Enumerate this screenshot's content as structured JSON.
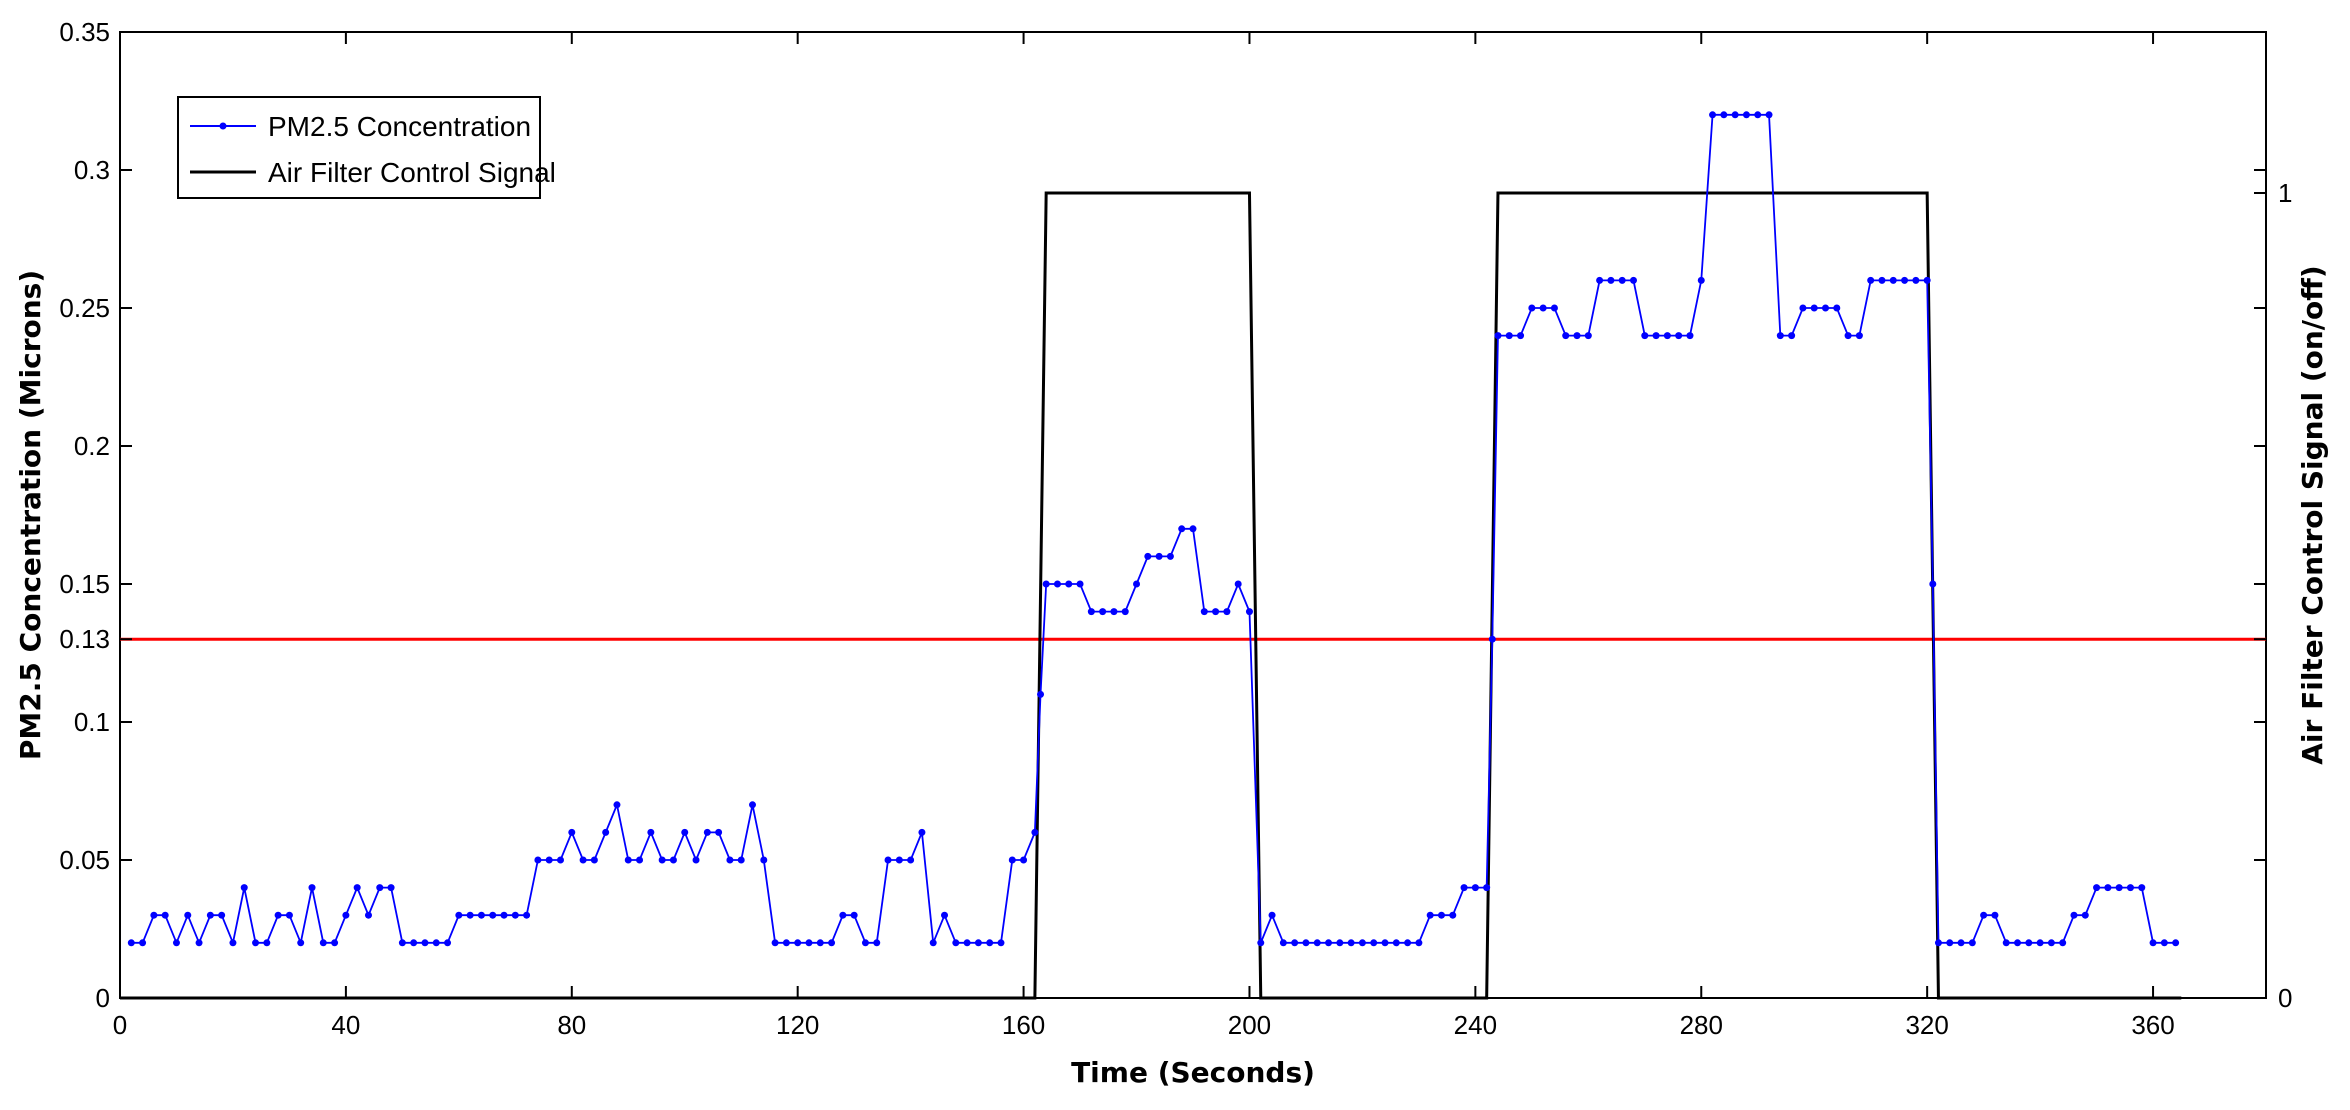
{
  "chart_data": {
    "type": "line",
    "title": "",
    "xlabel": "Time (Seconds)",
    "ylabel": "PM2.5 Concentration (Microns)",
    "ylabel_right": "Air Filter Control Signal (on/off)",
    "xlim": [
      0,
      380
    ],
    "ylim": [
      0,
      0.35
    ],
    "ylim_right": [
      0,
      1.2
    ],
    "x_ticks": [
      "0",
      "40",
      "80",
      "120",
      "160",
      "200",
      "240",
      "280",
      "320",
      "360"
    ],
    "y_ticks": [
      "0",
      "0.05",
      "0.1",
      "0.13",
      "0.15",
      "0.2",
      "0.25",
      "0.3",
      "0.35"
    ],
    "y_ticks_right": [
      "0",
      "1"
    ],
    "threshold": {
      "value": 0.13,
      "color": "#ff0000"
    },
    "legend": {
      "position": "top-left"
    },
    "series": [
      {
        "name": "PM2.5 Concentration",
        "color": "#0000ff",
        "marker": "dot",
        "points": [
          [
            2,
            0.02
          ],
          [
            4,
            0.02
          ],
          [
            6,
            0.03
          ],
          [
            8,
            0.03
          ],
          [
            10,
            0.02
          ],
          [
            12,
            0.03
          ],
          [
            14,
            0.02
          ],
          [
            16,
            0.03
          ],
          [
            18,
            0.03
          ],
          [
            20,
            0.02
          ],
          [
            22,
            0.04
          ],
          [
            24,
            0.02
          ],
          [
            26,
            0.02
          ],
          [
            28,
            0.03
          ],
          [
            30,
            0.03
          ],
          [
            32,
            0.02
          ],
          [
            34,
            0.04
          ],
          [
            36,
            0.02
          ],
          [
            38,
            0.02
          ],
          [
            40,
            0.03
          ],
          [
            42,
            0.04
          ],
          [
            44,
            0.03
          ],
          [
            46,
            0.04
          ],
          [
            48,
            0.04
          ],
          [
            50,
            0.02
          ],
          [
            52,
            0.02
          ],
          [
            54,
            0.02
          ],
          [
            56,
            0.02
          ],
          [
            58,
            0.02
          ],
          [
            60,
            0.03
          ],
          [
            62,
            0.03
          ],
          [
            64,
            0.03
          ],
          [
            66,
            0.03
          ],
          [
            68,
            0.03
          ],
          [
            70,
            0.03
          ],
          [
            72,
            0.03
          ],
          [
            74,
            0.05
          ],
          [
            76,
            0.05
          ],
          [
            78,
            0.05
          ],
          [
            80,
            0.06
          ],
          [
            82,
            0.05
          ],
          [
            84,
            0.05
          ],
          [
            86,
            0.06
          ],
          [
            88,
            0.07
          ],
          [
            90,
            0.05
          ],
          [
            92,
            0.05
          ],
          [
            94,
            0.06
          ],
          [
            96,
            0.05
          ],
          [
            98,
            0.05
          ],
          [
            100,
            0.06
          ],
          [
            102,
            0.05
          ],
          [
            104,
            0.06
          ],
          [
            106,
            0.06
          ],
          [
            108,
            0.05
          ],
          [
            110,
            0.05
          ],
          [
            112,
            0.07
          ],
          [
            114,
            0.05
          ],
          [
            116,
            0.02
          ],
          [
            118,
            0.02
          ],
          [
            120,
            0.02
          ],
          [
            122,
            0.02
          ],
          [
            124,
            0.02
          ],
          [
            126,
            0.02
          ],
          [
            128,
            0.03
          ],
          [
            130,
            0.03
          ],
          [
            132,
            0.02
          ],
          [
            134,
            0.02
          ],
          [
            136,
            0.05
          ],
          [
            138,
            0.05
          ],
          [
            140,
            0.05
          ],
          [
            142,
            0.06
          ],
          [
            144,
            0.02
          ],
          [
            146,
            0.03
          ],
          [
            148,
            0.02
          ],
          [
            150,
            0.02
          ],
          [
            152,
            0.02
          ],
          [
            154,
            0.02
          ],
          [
            156,
            0.02
          ],
          [
            158,
            0.05
          ],
          [
            160,
            0.05
          ],
          [
            162,
            0.06
          ],
          [
            163,
            0.11
          ],
          [
            164,
            0.15
          ],
          [
            166,
            0.15
          ],
          [
            168,
            0.15
          ],
          [
            170,
            0.15
          ],
          [
            172,
            0.14
          ],
          [
            174,
            0.14
          ],
          [
            176,
            0.14
          ],
          [
            178,
            0.14
          ],
          [
            180,
            0.15
          ],
          [
            182,
            0.16
          ],
          [
            184,
            0.16
          ],
          [
            186,
            0.16
          ],
          [
            188,
            0.17
          ],
          [
            190,
            0.17
          ],
          [
            192,
            0.14
          ],
          [
            194,
            0.14
          ],
          [
            196,
            0.14
          ],
          [
            198,
            0.15
          ],
          [
            200,
            0.14
          ],
          [
            202,
            0.02
          ],
          [
            204,
            0.03
          ],
          [
            206,
            0.02
          ],
          [
            208,
            0.02
          ],
          [
            210,
            0.02
          ],
          [
            212,
            0.02
          ],
          [
            214,
            0.02
          ],
          [
            216,
            0.02
          ],
          [
            218,
            0.02
          ],
          [
            220,
            0.02
          ],
          [
            222,
            0.02
          ],
          [
            224,
            0.02
          ],
          [
            226,
            0.02
          ],
          [
            228,
            0.02
          ],
          [
            230,
            0.02
          ],
          [
            232,
            0.03
          ],
          [
            234,
            0.03
          ],
          [
            236,
            0.03
          ],
          [
            238,
            0.04
          ],
          [
            240,
            0.04
          ],
          [
            242,
            0.04
          ],
          [
            243,
            0.13
          ],
          [
            244,
            0.24
          ],
          [
            246,
            0.24
          ],
          [
            248,
            0.24
          ],
          [
            250,
            0.25
          ],
          [
            252,
            0.25
          ],
          [
            254,
            0.25
          ],
          [
            256,
            0.24
          ],
          [
            258,
            0.24
          ],
          [
            260,
            0.24
          ],
          [
            262,
            0.26
          ],
          [
            264,
            0.26
          ],
          [
            266,
            0.26
          ],
          [
            268,
            0.26
          ],
          [
            270,
            0.24
          ],
          [
            272,
            0.24
          ],
          [
            274,
            0.24
          ],
          [
            276,
            0.24
          ],
          [
            278,
            0.24
          ],
          [
            280,
            0.26
          ],
          [
            282,
            0.32
          ],
          [
            284,
            0.32
          ],
          [
            286,
            0.32
          ],
          [
            288,
            0.32
          ],
          [
            290,
            0.32
          ],
          [
            292,
            0.32
          ],
          [
            294,
            0.24
          ],
          [
            296,
            0.24
          ],
          [
            298,
            0.25
          ],
          [
            300,
            0.25
          ],
          [
            302,
            0.25
          ],
          [
            304,
            0.25
          ],
          [
            306,
            0.24
          ],
          [
            308,
            0.24
          ],
          [
            310,
            0.26
          ],
          [
            312,
            0.26
          ],
          [
            314,
            0.26
          ],
          [
            316,
            0.26
          ],
          [
            318,
            0.26
          ],
          [
            320,
            0.26
          ],
          [
            321,
            0.15
          ],
          [
            322,
            0.02
          ],
          [
            324,
            0.02
          ],
          [
            326,
            0.02
          ],
          [
            328,
            0.02
          ],
          [
            330,
            0.03
          ],
          [
            332,
            0.03
          ],
          [
            334,
            0.02
          ],
          [
            336,
            0.02
          ],
          [
            338,
            0.02
          ],
          [
            340,
            0.02
          ],
          [
            342,
            0.02
          ],
          [
            344,
            0.02
          ],
          [
            346,
            0.03
          ],
          [
            348,
            0.03
          ],
          [
            350,
            0.04
          ],
          [
            352,
            0.04
          ],
          [
            354,
            0.04
          ],
          [
            356,
            0.04
          ],
          [
            358,
            0.04
          ],
          [
            360,
            0.02
          ],
          [
            362,
            0.02
          ],
          [
            364,
            0.02
          ]
        ]
      },
      {
        "name": "Air Filter Control Signal",
        "color": "#000000",
        "axis": "right",
        "points": [
          [
            0,
            0
          ],
          [
            162,
            0
          ],
          [
            164,
            1
          ],
          [
            200,
            1
          ],
          [
            202,
            0
          ],
          [
            242,
            0
          ],
          [
            244,
            1
          ],
          [
            320,
            1
          ],
          [
            322,
            0
          ],
          [
            365,
            0
          ]
        ]
      }
    ]
  }
}
